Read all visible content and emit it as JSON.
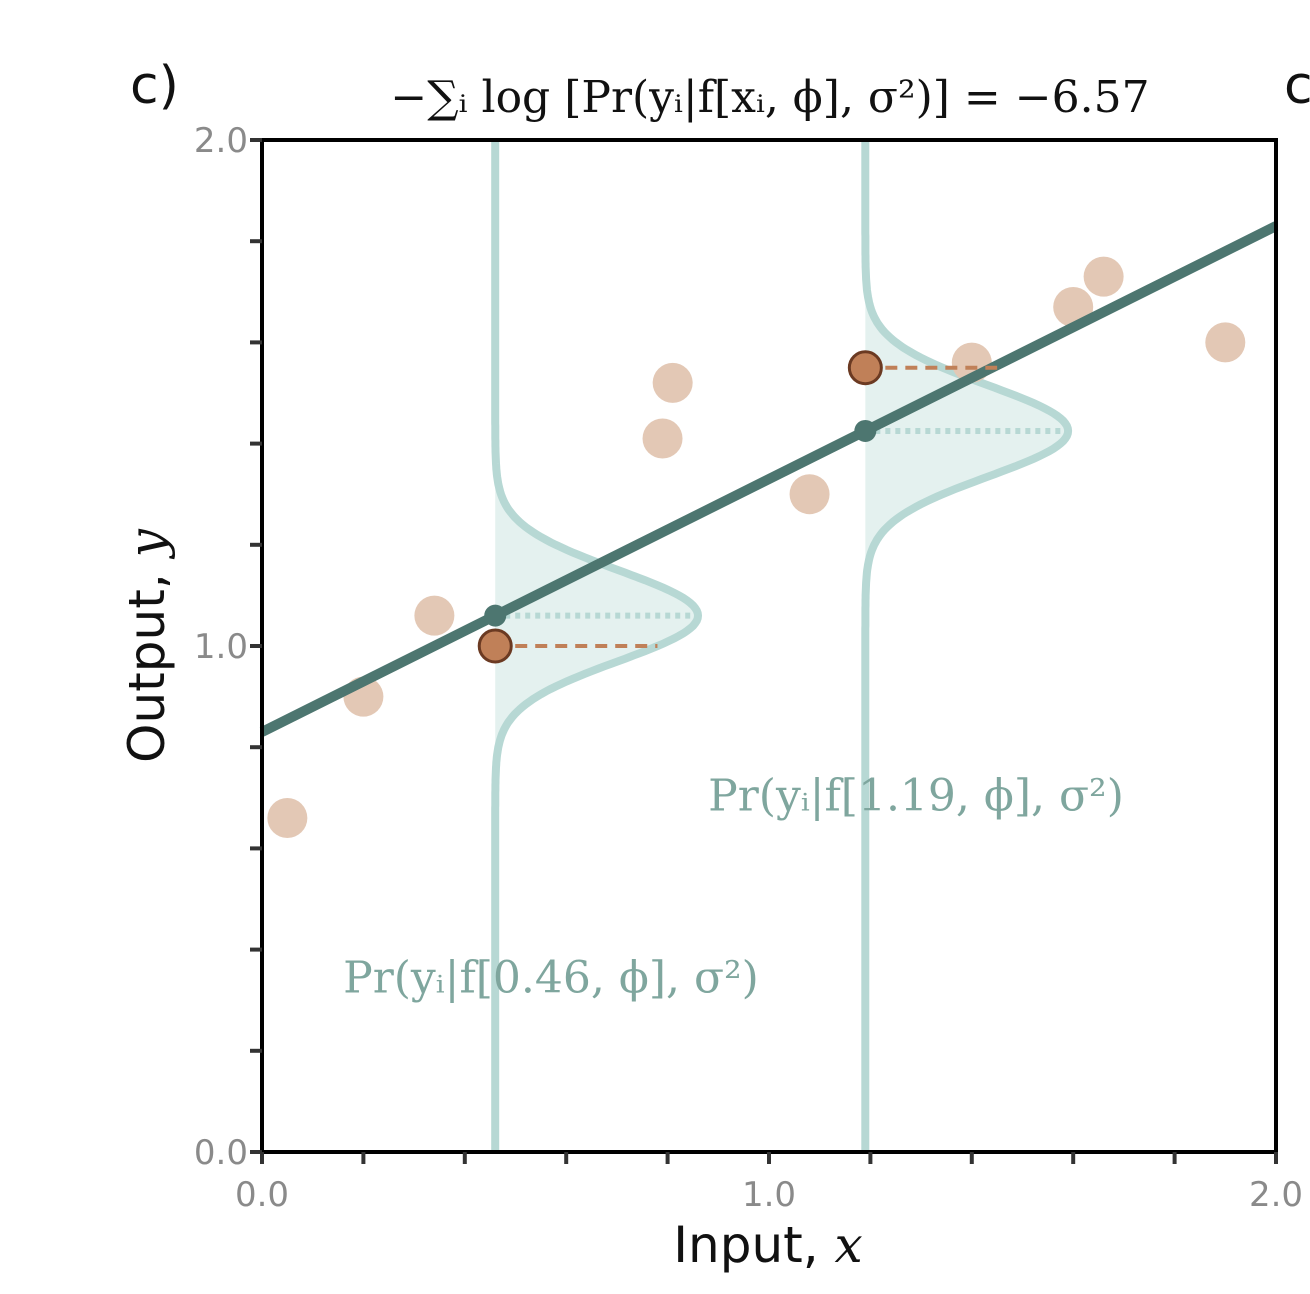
{
  "panel_label": "c)",
  "cut_label": "c",
  "title": "−∑ᵢ log [Pr(yᵢ|f[xᵢ, ϕ], σ²)] = −6.57",
  "chart_data": {
    "type": "scatter",
    "xlabel": "Input, x",
    "xlabel_text": "Input, ",
    "xlabel_var": "x",
    "ylabel": "Output, y",
    "ylabel_text": "Output, ",
    "ylabel_var": "y",
    "xlim": [
      0,
      2
    ],
    "ylim": [
      0,
      2
    ],
    "xticks": [
      0,
      0.2,
      0.4,
      0.6,
      0.8,
      1.0,
      1.2,
      1.4,
      1.6,
      1.8,
      2.0
    ],
    "yticks": [
      0,
      0.2,
      0.4,
      0.6,
      0.8,
      1.0,
      1.2,
      1.4,
      1.6,
      1.8,
      2.0
    ],
    "xtick_labels": [
      {
        "value": 0,
        "label": "0.0"
      },
      {
        "value": 1,
        "label": "1.0"
      },
      {
        "value": 2,
        "label": "2.0"
      }
    ],
    "ytick_labels": [
      {
        "value": 0,
        "label": "0.0"
      },
      {
        "value": 1,
        "label": "1.0"
      },
      {
        "value": 2,
        "label": "2.0"
      }
    ],
    "grid": false,
    "points": [
      {
        "x": 0.05,
        "y": 0.66
      },
      {
        "x": 0.2,
        "y": 0.9
      },
      {
        "x": 0.34,
        "y": 1.06
      },
      {
        "x": 0.79,
        "y": 1.41
      },
      {
        "x": 0.81,
        "y": 1.52
      },
      {
        "x": 1.08,
        "y": 1.3
      },
      {
        "x": 1.4,
        "y": 1.56
      },
      {
        "x": 1.6,
        "y": 1.67
      },
      {
        "x": 1.66,
        "y": 1.73
      },
      {
        "x": 1.9,
        "y": 1.6
      }
    ],
    "line": {
      "intercept": 0.83,
      "slope": 0.5
    },
    "sigma": 0.09,
    "highlighted": [
      {
        "x": 0.46,
        "y": 1.0,
        "annotation": "Pr(yᵢ|f[0.46, ϕ], σ²)"
      },
      {
        "x": 1.19,
        "y": 1.55,
        "annotation": "Pr(yᵢ|f[1.19, ϕ], σ²)"
      }
    ],
    "colors": {
      "points": "#e3c8b5",
      "line": "#4d7670",
      "highlight_fill": "#c08058",
      "highlight_stroke": "#6b3a22",
      "residual": "#c08058",
      "gaussian_stroke": "#b7d8d4",
      "gaussian_fill": "#e4f1ef",
      "annotation": "#7fa69e"
    }
  }
}
